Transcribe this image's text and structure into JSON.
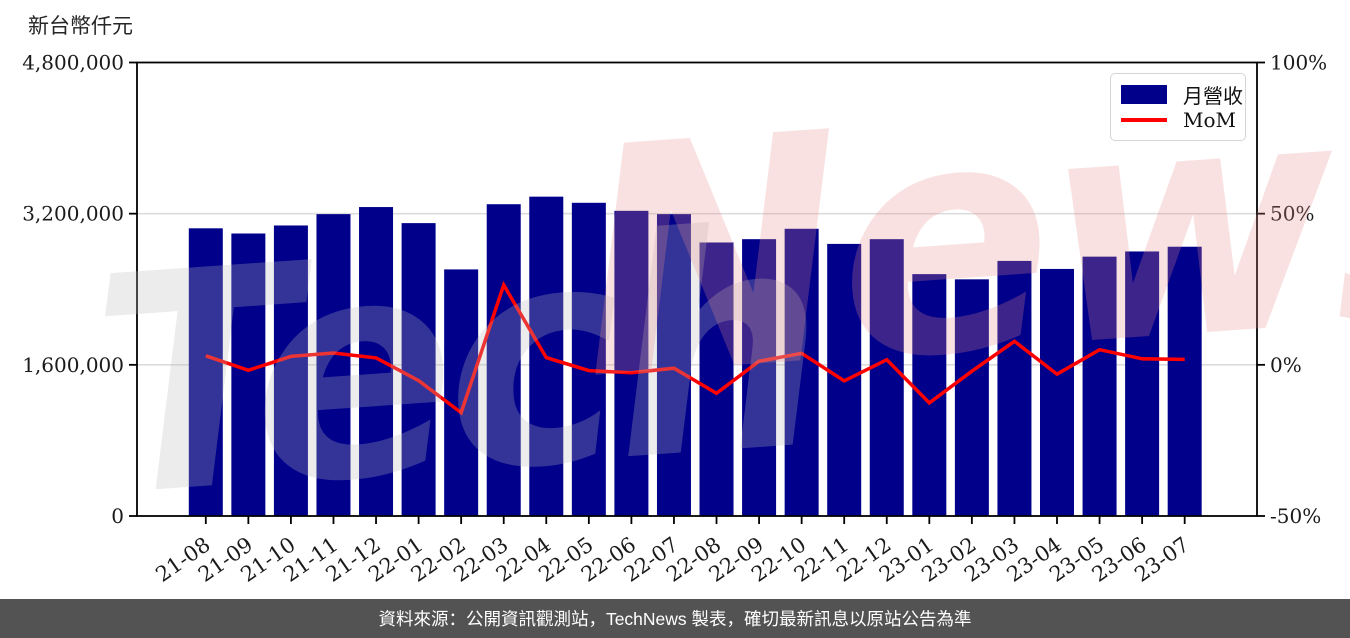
{
  "title": "新台幣仟元",
  "legend": {
    "bar_label": "月營收",
    "line_label": "MoM"
  },
  "footer": {
    "text": "資料來源：公開資訊觀測站，TechNews 製表，確切最新訊息以原站公告為準"
  },
  "watermark": {
    "part1": "Tech",
    "part2": "News"
  },
  "colors": {
    "bar": "#00008B",
    "line": "#FF0000",
    "grid": "#DCDCDC",
    "spine": "#000000",
    "footer_bg": "#535353",
    "tick_text": "#1a1a1a"
  },
  "chart_data": {
    "type": "bar",
    "title": "新台幣仟元",
    "categories": [
      "21-08",
      "21-09",
      "21-10",
      "21-11",
      "21-12",
      "22-01",
      "22-02",
      "22-03",
      "22-04",
      "22-05",
      "22-06",
      "22-07",
      "22-08",
      "22-09",
      "22-10",
      "22-11",
      "22-12",
      "23-01",
      "23-02",
      "23-03",
      "23-04",
      "23-05",
      "23-06",
      "23-07"
    ],
    "series": [
      {
        "name": "月營收",
        "type": "bar",
        "axis": "left",
        "unit": "新台幣仟元",
        "values": [
          3045000,
          2990000,
          3075000,
          3195000,
          3270000,
          3100000,
          2610000,
          3300000,
          3380000,
          3315000,
          3230000,
          3195000,
          2895000,
          2930000,
          3040000,
          2880000,
          2930000,
          2560000,
          2505000,
          2700000,
          2615000,
          2745000,
          2800000,
          2850000
        ]
      },
      {
        "name": "MoM",
        "type": "line",
        "axis": "right",
        "unit": "%",
        "values": [
          3.0,
          -1.8,
          2.8,
          3.9,
          2.3,
          -5.2,
          -15.8,
          26.4,
          2.4,
          -1.9,
          -2.6,
          -1.1,
          -9.4,
          1.2,
          3.8,
          -5.3,
          1.7,
          -12.6,
          -2.1,
          7.8,
          -3.1,
          5.0,
          2.0,
          1.8
        ]
      }
    ],
    "left_axis": {
      "label": "新台幣仟元",
      "tick_labels": [
        "0",
        "1,600,000",
        "3,200,000",
        "4,800,000"
      ],
      "tick_values": [
        0,
        1600000,
        3200000,
        4800000
      ],
      "range": [
        0,
        4800000
      ]
    },
    "right_axis": {
      "tick_labels": [
        "-50%",
        "0%",
        "50%",
        "100%"
      ],
      "tick_values": [
        -50,
        0,
        50,
        100
      ],
      "range": [
        -50,
        100
      ]
    },
    "grid": "horizontal, at 1,600,000 / 0% and 3,200,000 / 50%",
    "legend_position": "upper right"
  }
}
